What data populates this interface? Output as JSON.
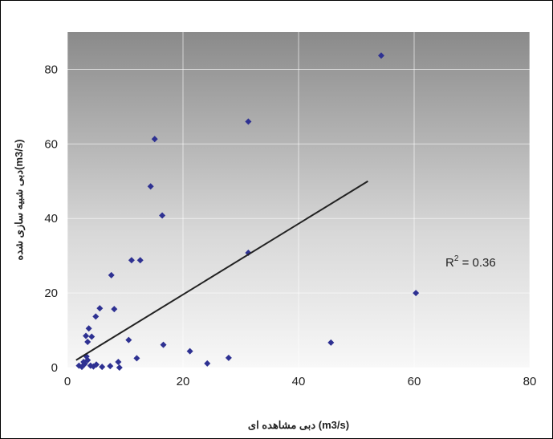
{
  "chart_data": {
    "type": "scatter",
    "x_label": "دبی مشاهده ای (m3/s)",
    "y_label": "دبی شبیه سازی شده(m3/s)",
    "x": [
      54.3,
      31.3,
      15.1,
      14.4,
      16.4,
      31.3,
      11.1,
      12.6,
      7.6,
      60.3,
      5.6,
      8.1,
      4.9,
      3.7,
      10.6,
      16.6,
      45.6,
      4.2,
      3.2,
      3.5,
      21.2,
      27.9,
      12.0,
      24.2,
      8.8,
      9.0,
      7.4,
      2.0,
      2.5,
      3.0,
      3.5,
      4.0,
      4.5,
      5.0,
      3.3,
      2.8,
      6.0
    ],
    "y": [
      83.7,
      66,
      61.3,
      48.6,
      40.8,
      30.8,
      28.8,
      28.8,
      24.8,
      20,
      15.9,
      15.7,
      13.7,
      10.5,
      7.4,
      6.1,
      6.7,
      8.3,
      8.5,
      6.9,
      4.4,
      2.6,
      2.5,
      1.1,
      1.5,
      0.0,
      0.4,
      0.5,
      0.2,
      1.0,
      2.0,
      0.5,
      0.3,
      0.8,
      3.0,
      1.5,
      0.2
    ],
    "color": "#2e3192",
    "trendline": {
      "x": [
        1.5,
        52
      ],
      "y": [
        2,
        50
      ],
      "color": "#222222"
    },
    "annotation": {
      "base": "R",
      "sup": "2",
      "rest": " = 0.36"
    },
    "xlim": [
      0,
      80
    ],
    "xticks": [
      0,
      20,
      40,
      60,
      80
    ],
    "ylim": [
      0,
      90
    ],
    "yticks": [
      0,
      20,
      40,
      60,
      80
    ],
    "grid": true
  }
}
